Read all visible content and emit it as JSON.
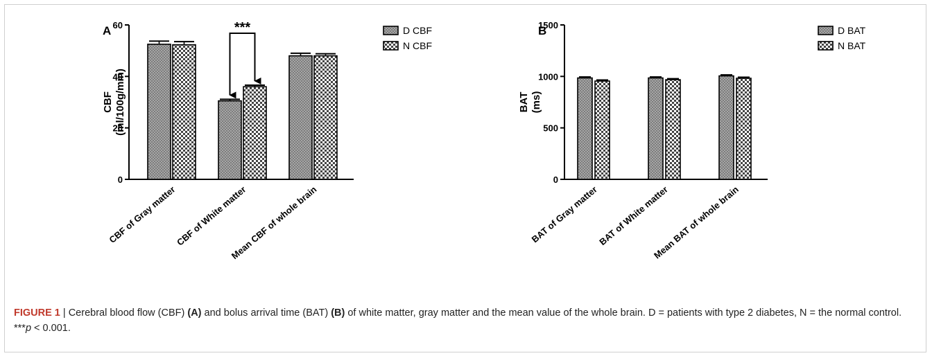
{
  "chart_data": [
    {
      "type": "bar",
      "panel_label": "A",
      "categories": [
        "CBF of Gray matter",
        "CBF of White matter",
        "Mean CBF of whole brain"
      ],
      "series": [
        {
          "name": "D CBF",
          "values": [
            52.5,
            30.5,
            48.0
          ],
          "errors": [
            1.2,
            0.6,
            1.0
          ]
        },
        {
          "name": "N CBF",
          "values": [
            52.3,
            36.0,
            48.0
          ],
          "errors": [
            1.2,
            0.6,
            0.8
          ]
        }
      ],
      "ylabel": "CBF",
      "ylabel_unit": "(ml/100g/min)",
      "ylim": [
        0,
        60
      ],
      "yticks": [
        "0",
        "20",
        "40",
        "60"
      ],
      "significance": {
        "label": "***",
        "category": "CBF of White matter"
      },
      "legend_position": "top-right"
    },
    {
      "type": "bar",
      "panel_label": "B",
      "categories": [
        "BAT of Gray matter",
        "BAT of White matter",
        "Mean BAT of whole brain"
      ],
      "series": [
        {
          "name": "D BAT",
          "values": [
            985,
            985,
            1005
          ],
          "errors": [
            10,
            10,
            10
          ]
        },
        {
          "name": "N BAT",
          "values": [
            955,
            968,
            982
          ],
          "errors": [
            10,
            10,
            10
          ]
        }
      ],
      "ylabel": "BAT",
      "ylabel_unit": "(ms)",
      "ylim": [
        0,
        1500
      ],
      "yticks": [
        "0",
        "500",
        "1000",
        "1500"
      ],
      "legend_position": "top-right"
    }
  ],
  "caption": {
    "figure_label": "FIGURE 1",
    "separator": " | ",
    "t1": "Cerebral blood flow (CBF) ",
    "ref_a": "(A)",
    "t2": " and bolus arrival time (BAT) ",
    "ref_b": "(B)",
    "t3": " of white matter, gray matter and the mean value of the whole brain. D = patients with type 2 diabetes, N = the normal control. ***",
    "p_symbol": "p",
    "t4": " < 0.001."
  },
  "colors": {
    "bar_stroke": "#000000",
    "d_fill": "#8c8c8c",
    "n_fill": "#f2f2f2",
    "caption_label": "#c0392b",
    "frame": "#cfcfcf"
  }
}
